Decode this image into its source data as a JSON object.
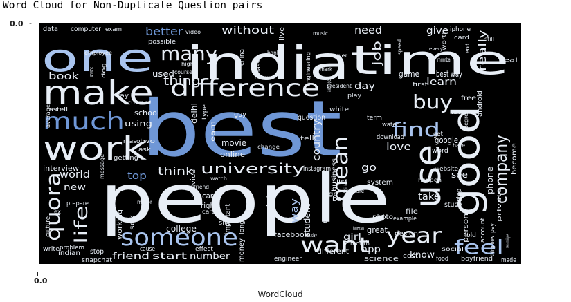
{
  "title": "Word Cloud for Non-Duplicate Question pairs",
  "axis": {
    "y_top_tick": "0.0",
    "x_bottom_tick": "0.0",
    "xlabel": "WordCloud"
  },
  "colors": {
    "background": "#000000",
    "blue": "#6f97d6",
    "light_blue": "#a9c4ee",
    "white": "#e8eef6"
  },
  "words": [
    "best",
    "people",
    "india",
    "time",
    "one",
    "make",
    "work",
    "good",
    "use",
    "difference",
    "much",
    "someone",
    "quora",
    "want",
    "year",
    "feel",
    "life",
    "many",
    "mean",
    "find",
    "company",
    "university",
    "buy",
    "thing",
    "without",
    "need",
    "give",
    "really",
    "better",
    "job",
    "book",
    "used",
    "learn",
    "day",
    "love",
    "country",
    "think",
    "top",
    "world",
    "new",
    "way",
    "student",
    "go",
    "business",
    "phone",
    "person",
    "become",
    "friend",
    "start",
    "number",
    "know",
    "app",
    "girl",
    "take",
    "see",
    "game",
    "best way",
    "first",
    "using",
    "movie",
    "online",
    "instagram",
    "college",
    "car",
    "right",
    "facebook",
    "money",
    "bad",
    "stop",
    "important",
    "guy",
    "help",
    "system",
    "google",
    "get",
    "word",
    "great",
    "file",
    "design",
    "study",
    "indian",
    "cost",
    "food",
    "engineer",
    "science",
    "different",
    "boyfriend",
    "made",
    "month",
    "sex",
    "working",
    "laptop",
    "account",
    "old",
    "pay",
    "data",
    "computer",
    "exam",
    "video",
    "possible",
    "china",
    "live",
    "music",
    "world",
    "iphone",
    "card",
    "average",
    "say",
    "employee",
    "course",
    "high",
    "bank",
    "class",
    "remove",
    "president",
    "engineering",
    "mark",
    "speed",
    "answer",
    "term",
    "water",
    "delhi",
    "type",
    "school",
    "interview",
    "getting",
    "service",
    "two",
    "reason",
    "ask",
    "free",
    "android",
    "question",
    "tell",
    "watch",
    "photo",
    "example",
    "site",
    "write",
    "culture",
    "problem",
    "snapchat",
    "cause",
    "effect",
    "long",
    "girlfriend",
    "major",
    "career",
    "prepare",
    "ex",
    "message",
    "war",
    "cell",
    "last",
    "play",
    "white",
    "law",
    "download",
    "degree",
    "hate",
    "website",
    "happen",
    "software",
    "private",
    "new employee",
    "social",
    "thing new",
    "first day",
    "back",
    "human",
    "list",
    "idea",
    "age",
    "earn",
    "change",
    "current",
    "average",
    "still",
    "end",
    "real",
    "mumbai",
    "every",
    "worth",
    "anyone",
    "dog",
    "going",
    "month"
  ]
}
